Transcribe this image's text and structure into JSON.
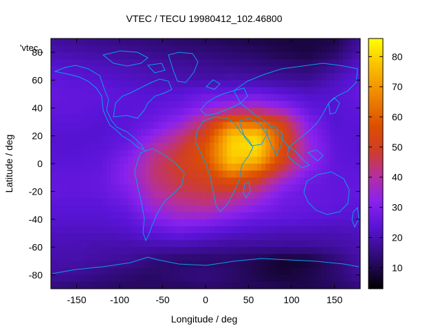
{
  "chart_data": {
    "type": "heatmap",
    "title": "VTEC / TECU 19980412_102.46800",
    "xlabel": "Longitude / deg",
    "ylabel": "Latitude / deg",
    "key_label": "'vtec_",
    "xlim": [
      -180,
      180
    ],
    "ylim": [
      -90,
      90
    ],
    "xticks": [
      -150,
      -100,
      -50,
      0,
      50,
      100,
      150
    ],
    "yticks": [
      -80,
      -60,
      -40,
      -20,
      0,
      20,
      40,
      60,
      80
    ],
    "colorbar": {
      "min": 3,
      "max": 86,
      "ticks": [
        10,
        20,
        30,
        40,
        50,
        60,
        70,
        80
      ]
    },
    "lat_grid": [
      87.5,
      80,
      70,
      60,
      50,
      40,
      30,
      20,
      10,
      0,
      -10,
      -20,
      -30,
      -40,
      -50,
      -60,
      -70,
      -80,
      -87.5
    ],
    "lon_grid": [
      -180,
      -150,
      -120,
      -90,
      -60,
      -30,
      0,
      30,
      60,
      90,
      120,
      150,
      180
    ],
    "values": [
      [
        18,
        17,
        16,
        15,
        14,
        13,
        12,
        11,
        10,
        9,
        9,
        10,
        18
      ],
      [
        20,
        19,
        18,
        17,
        16,
        15,
        14,
        13,
        12,
        10,
        9,
        12,
        20
      ],
      [
        23,
        22,
        21,
        20,
        19,
        18,
        17,
        16,
        15,
        14,
        13,
        17,
        23
      ],
      [
        25,
        24,
        23,
        22,
        21,
        20,
        19,
        20,
        19,
        18,
        17,
        21,
        25
      ],
      [
        26,
        25,
        25,
        24,
        23,
        24,
        27,
        26,
        27,
        24,
        22,
        23,
        26
      ],
      [
        25,
        25,
        24,
        24,
        25,
        27,
        32,
        37,
        38,
        33,
        25,
        23,
        25
      ],
      [
        24,
        24,
        23,
        24,
        27,
        33,
        45,
        62,
        60,
        50,
        30,
        23,
        24
      ],
      [
        23,
        23,
        23,
        25,
        33,
        42,
        53,
        78,
        80,
        55,
        33,
        24,
        23
      ],
      [
        23,
        23,
        24,
        28,
        40,
        47,
        58,
        80,
        82,
        55,
        35,
        25,
        23
      ],
      [
        24,
        24,
        25,
        32,
        43,
        50,
        56,
        77,
        72,
        50,
        34,
        25,
        24
      ],
      [
        25,
        25,
        26,
        33,
        43,
        48,
        51,
        60,
        52,
        38,
        28,
        25,
        25
      ],
      [
        26,
        25,
        26,
        30,
        40,
        45,
        47,
        47,
        40,
        30,
        26,
        25,
        26
      ],
      [
        24,
        24,
        24,
        27,
        36,
        40,
        42,
        38,
        32,
        27,
        26,
        25,
        24
      ],
      [
        23,
        23,
        23,
        24,
        30,
        34,
        33,
        29,
        26,
        25,
        24,
        23,
        23
      ],
      [
        21,
        21,
        21,
        22,
        24,
        26,
        24,
        22,
        21,
        20,
        20,
        20,
        21
      ],
      [
        20,
        20,
        19,
        19,
        19,
        19,
        18,
        17,
        17,
        17,
        17,
        18,
        20
      ],
      [
        19,
        19,
        18,
        17,
        14,
        12,
        12,
        12,
        10,
        7,
        8,
        13,
        19
      ],
      [
        18,
        17,
        15,
        13,
        12,
        14,
        15,
        13,
        10,
        8,
        10,
        13,
        18
      ],
      [
        15,
        14,
        13,
        12,
        12,
        12,
        13,
        12,
        11,
        10,
        10,
        12,
        15
      ]
    ]
  }
}
